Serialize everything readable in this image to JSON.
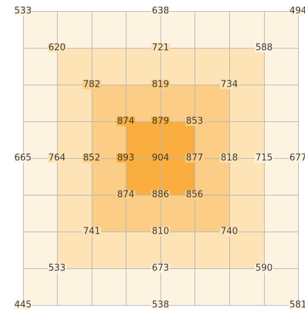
{
  "band_colors": {
    "outer": "#fdf3e1",
    "ring1": "#fde3b6",
    "ring2": "#fbcd86",
    "center": "#f9ae3f"
  },
  "grid_line_color": "#b8b8b8",
  "rows": [
    {
      "id": "r0",
      "values": [
        "533",
        "",
        "",
        "",
        "638",
        "",
        "",
        "",
        "494"
      ]
    },
    {
      "id": "r1",
      "values": [
        "",
        "620",
        "",
        "",
        "721",
        "",
        "",
        "588",
        ""
      ]
    },
    {
      "id": "r2",
      "values": [
        "",
        "",
        "782",
        "",
        "819",
        "",
        "734",
        "",
        ""
      ]
    },
    {
      "id": "r3",
      "values": [
        "",
        "",
        "",
        "874",
        "879",
        "853",
        "",
        "",
        ""
      ]
    },
    {
      "id": "r4",
      "values": [
        "665",
        "764",
        "852",
        "893",
        "904",
        "877",
        "818",
        "715",
        "677"
      ]
    },
    {
      "id": "r5",
      "values": [
        "",
        "",
        "",
        "874",
        "886",
        "856",
        "",
        "",
        ""
      ]
    },
    {
      "id": "r6",
      "values": [
        "",
        "",
        "741",
        "",
        "810",
        "",
        "740",
        "",
        ""
      ]
    },
    {
      "id": "r7",
      "values": [
        "",
        "533",
        "",
        "",
        "673",
        "",
        "",
        "590",
        ""
      ]
    },
    {
      "id": "r8",
      "values": [
        "445",
        "",
        "",
        "",
        "538",
        "",
        "",
        "",
        "581"
      ]
    }
  ]
}
